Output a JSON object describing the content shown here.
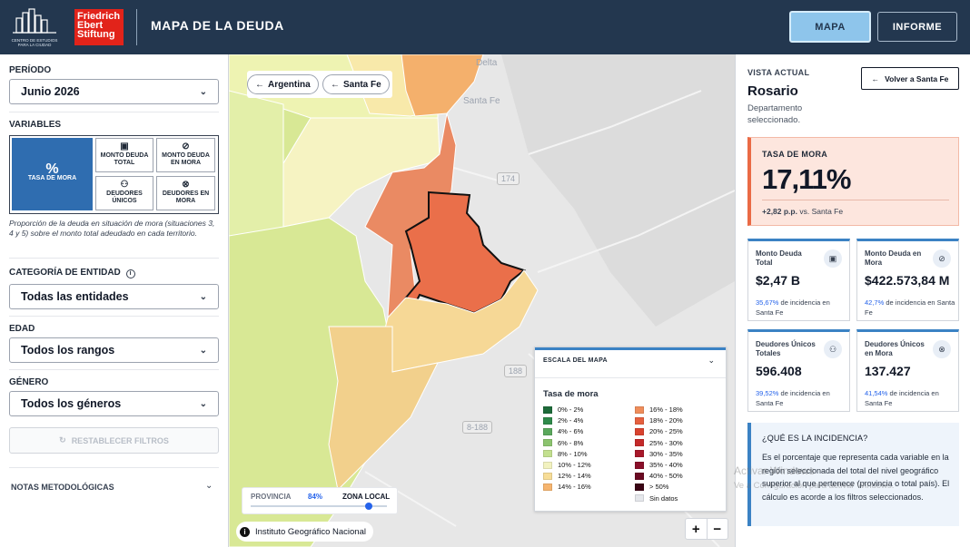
{
  "header": {
    "logo_caption": "CENTRO DE ESTUDIOS PARA LA CIUDAD",
    "fes_logo_text": "Friedrich Ebert Stiftung",
    "title": "MAPA DE LA DEUDA",
    "tab_mapa": "MAPA",
    "tab_informe": "INFORME"
  },
  "filters": {
    "periodo_label": "PERÍODO",
    "periodo_value": "Junio 2026",
    "variables_label": "VARIABLES",
    "variables": [
      {
        "label": "TASA DE MORA",
        "icon": "percent-icon",
        "active": true
      },
      {
        "label": "MONTO DEUDA TOTAL",
        "icon": "cash-icon",
        "active": false
      },
      {
        "label": "MONTO DEUDA EN MORA",
        "icon": "money-off-icon",
        "active": false
      },
      {
        "label": "DEUDORES ÚNICOS",
        "icon": "users-icon",
        "active": false
      },
      {
        "label": "DEUDORES EN MORA",
        "icon": "user-off-icon",
        "active": false
      }
    ],
    "variable_description": "Proporción de la deuda en situación de mora (situaciones 3, 4 y 5) sobre el monto total adeudado en cada territorio.",
    "categoria_label": "CATEGORÍA DE ENTIDAD",
    "categoria_value": "Todas las entidades",
    "edad_label": "EDAD",
    "edad_value": "Todos los rangos",
    "genero_label": "GÉNERO",
    "genero_value": "Todos los géneros",
    "reset_label": "RESTABLECER FILTROS",
    "notes_label": "NOTAS METODOLÓGICAS"
  },
  "map": {
    "breadcrumbs": [
      "Argentina",
      "Santa Fe"
    ],
    "place_labels": [
      "Delta",
      "Santa Fe"
    ],
    "route_labels": [
      "174",
      "188",
      "8-188"
    ],
    "scale_toggle": {
      "left": "PROVINCIA",
      "value": "84%",
      "right": "ZONA LOCAL"
    },
    "attribution": "Instituto Geográfico Nacional",
    "zoom_in": "+",
    "zoom_out": "−"
  },
  "legend": {
    "header": "ESCALA DEL MAPA",
    "title": "Tasa de mora",
    "items": [
      {
        "label": "0% - 2%",
        "color": "#1e6b3a"
      },
      {
        "label": "2% - 4%",
        "color": "#2f8a4a"
      },
      {
        "label": "4% - 6%",
        "color": "#5aa85c"
      },
      {
        "label": "6% - 8%",
        "color": "#8cc46f"
      },
      {
        "label": "8% - 10%",
        "color": "#c3e08f"
      },
      {
        "label": "10% - 12%",
        "color": "#f2f2c0"
      },
      {
        "label": "12% - 14%",
        "color": "#f7dd97"
      },
      {
        "label": "14% - 16%",
        "color": "#f6b56f"
      },
      {
        "label": "16% - 18%",
        "color": "#ef8d5b"
      },
      {
        "label": "18% - 20%",
        "color": "#e6603f"
      },
      {
        "label": "20% - 25%",
        "color": "#d9432f"
      },
      {
        "label": "25% - 30%",
        "color": "#c42a2a"
      },
      {
        "label": "30% - 35%",
        "color": "#a8182a"
      },
      {
        "label": "35% - 40%",
        "color": "#8a0f2a"
      },
      {
        "label": "40% - 50%",
        "color": "#6a0a22"
      },
      {
        "label": "> 50%",
        "color": "#3a0515"
      },
      {
        "label": "Sin datos",
        "color": "#e5e7eb"
      }
    ]
  },
  "panel": {
    "vista_label": "VISTA ACTUAL",
    "back_label": "Volver a Santa Fe",
    "city": "Rosario",
    "subtitle": "Departamento seleccionado.",
    "tasa": {
      "label": "TASA DE MORA",
      "value": "17,11%",
      "delta": "+2,82 p.p.",
      "delta_suffix": "vs. Santa Fe"
    },
    "cards": [
      {
        "title": "Monto Deuda Total",
        "icon": "cash-icon",
        "value": "$2,47 B",
        "pct": "35,67%",
        "suffix": "de incidencia en Santa Fe"
      },
      {
        "title": "Monto Deuda en Mora",
        "icon": "money-off-icon",
        "value": "$422.573,84 M",
        "pct": "42,7%",
        "suffix": "de incidencia en Santa Fe"
      },
      {
        "title": "Deudores Únicos Totales",
        "icon": "users-icon",
        "value": "596.408",
        "pct": "39,52%",
        "suffix": "de incidencia en Santa Fe"
      },
      {
        "title": "Deudores Únicos en Mora",
        "icon": "user-off-icon",
        "value": "137.427",
        "pct": "41,54%",
        "suffix": "de incidencia en Santa Fe"
      }
    ],
    "info_question": "¿QUÉ ES LA INCIDENCIA?",
    "info_answer": "Es el porcentaje que representa cada variable en la región seleccionada del total del nivel geográfico superior al que pertenece (provincia o total país). El cálculo es acorde a los filtros seleccionados."
  },
  "watermark": {
    "line1": "Activar Windows",
    "line2": "Ve a Configuración para activar Windows."
  }
}
